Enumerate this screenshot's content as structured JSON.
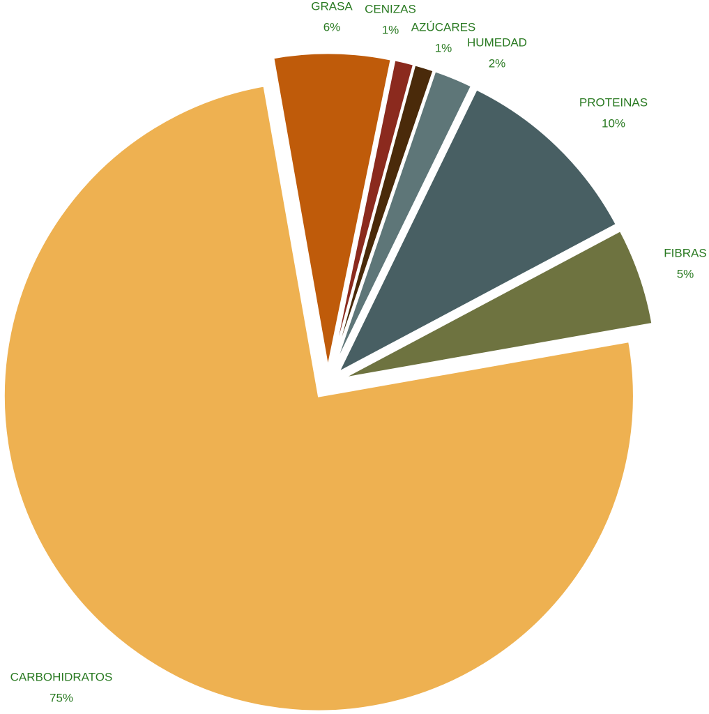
{
  "chart_data": {
    "type": "pie",
    "categories": [
      "GRASA",
      "CENIZAS",
      "AZÚCARES",
      "HUMEDAD",
      "PROTEINAS",
      "FIBRAS",
      "CARBOHIDRATOS"
    ],
    "values": [
      6,
      1,
      1,
      2,
      10,
      5,
      75
    ],
    "value_labels": [
      "6%",
      "1%",
      "1%",
      "2%",
      "10%",
      "5%",
      "75%"
    ],
    "colors": [
      "#bf5b0a",
      "#8b2a1e",
      "#4a2a0a",
      "#5e7678",
      "#485f63",
      "#6e7340",
      "#eeb151"
    ],
    "label_color": "#2a7a22"
  }
}
